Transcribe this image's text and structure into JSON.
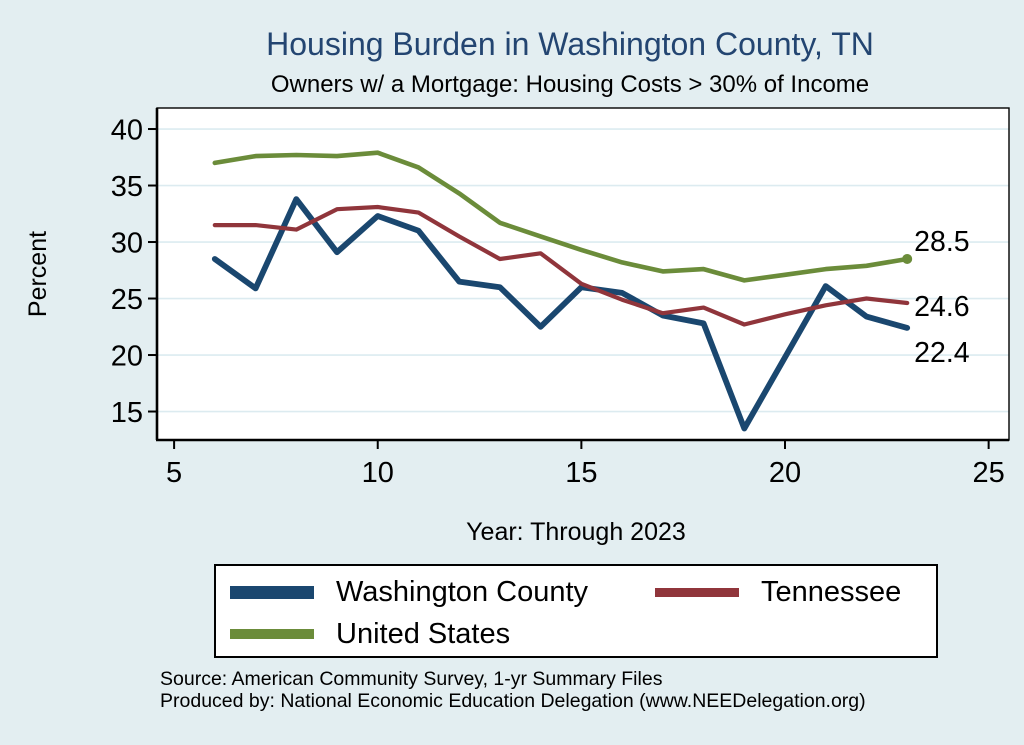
{
  "title": "Housing Burden in Washington County, TN",
  "subtitle": "Owners w/ a Mortgage: Housing Costs > 30% of Income",
  "source": {
    "line1": "Source: American Community Survey, 1-yr Summary Files",
    "line2": "Produced by: National Economic Education Delegation (www.NEEDelegation.org)"
  },
  "colors": {
    "background": "#e3eef1",
    "plot_background": "#ffffff",
    "grid": "#dcebf0",
    "axis": "#000000",
    "title_text": "#234571",
    "washington_county": "#1a476f",
    "tennessee": "#90353b",
    "united_states": "#6b8c3a"
  },
  "chart_data": {
    "type": "line",
    "title": "Housing Burden in Washington County, TN",
    "subtitle": "Owners w/ a Mortgage: Housing Costs > 30% of Income",
    "xlabel": "Year: Through 2023",
    "ylabel": "Percent",
    "x": [
      6,
      7,
      8,
      9,
      10,
      11,
      12,
      13,
      14,
      15,
      16,
      17,
      18,
      19,
      20,
      21,
      22,
      23
    ],
    "series": [
      {
        "name": "Washington County",
        "color_key": "washington_county",
        "values": [
          28.5,
          25.9,
          33.8,
          29.1,
          32.3,
          31.0,
          26.5,
          26.0,
          22.5,
          26.0,
          25.5,
          23.5,
          22.8,
          13.5,
          19.8,
          26.1,
          23.4,
          22.4
        ],
        "end_label": "22.4",
        "end_label_dy": 34,
        "end_marker": false
      },
      {
        "name": "Tennessee",
        "color_key": "tennessee",
        "values": [
          31.5,
          31.5,
          31.1,
          32.9,
          33.1,
          32.6,
          30.5,
          28.5,
          29.0,
          26.3,
          24.9,
          23.7,
          24.2,
          22.7,
          23.6,
          24.4,
          25.0,
          24.6
        ],
        "end_label": "24.6",
        "end_label_dy": 13,
        "end_marker": false
      },
      {
        "name": "United States",
        "color_key": "united_states",
        "values": [
          37.0,
          37.6,
          37.7,
          37.6,
          37.9,
          36.6,
          34.3,
          31.7,
          30.5,
          29.3,
          28.2,
          27.4,
          27.6,
          26.6,
          27.1,
          27.6,
          27.9,
          28.5
        ],
        "end_label": "28.5",
        "end_label_dy": -8,
        "end_marker": true
      }
    ],
    "x_ticks": [
      5,
      10,
      15,
      20,
      25
    ],
    "y_ticks": [
      15,
      20,
      25,
      30,
      35,
      40
    ],
    "xlim": [
      4.58,
      25.5
    ],
    "ylim": [
      12.48,
      41.86
    ],
    "grid": "horizontal-only",
    "legend_position": "bottom"
  }
}
